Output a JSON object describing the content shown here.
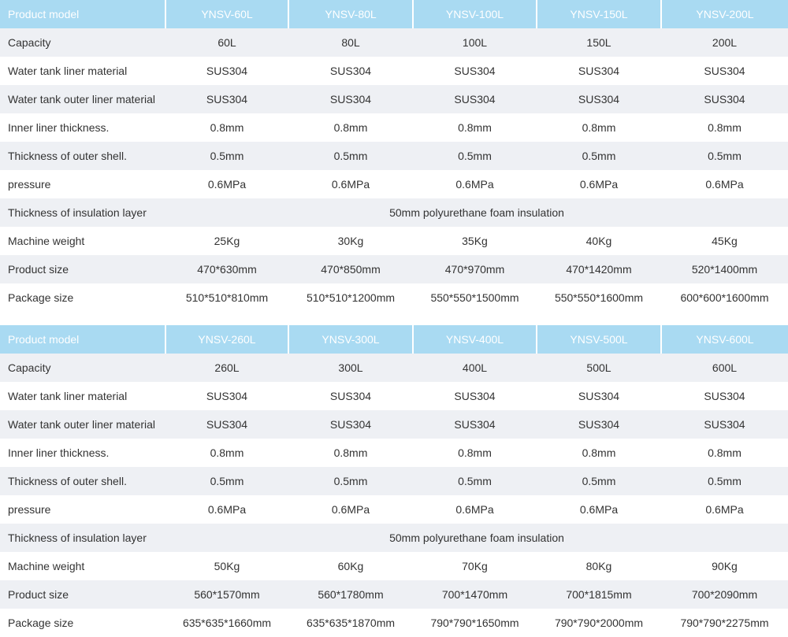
{
  "tables": [
    {
      "header": [
        "Product model",
        "YNSV-60L",
        "YNSV-80L",
        "YNSV-100L",
        "YNSV-150L",
        "YNSV-200L"
      ],
      "rows": [
        [
          "Capacity",
          "60L",
          "80L",
          "100L",
          "150L",
          "200L"
        ],
        [
          "Water tank liner material",
          "SUS304",
          "SUS304",
          "SUS304",
          "SUS304",
          "SUS304"
        ],
        [
          "Water tank outer liner material",
          "SUS304",
          "SUS304",
          "SUS304",
          "SUS304",
          "SUS304"
        ],
        [
          "Inner liner thickness.",
          "0.8mm",
          "0.8mm",
          "0.8mm",
          "0.8mm",
          "0.8mm"
        ],
        [
          "Thickness of outer shell.",
          "0.5mm",
          "0.5mm",
          "0.5mm",
          "0.5mm",
          "0.5mm"
        ],
        [
          "pressure",
          "0.6MPa",
          "0.6MPa",
          "0.6MPa",
          "0.6MPa",
          "0.6MPa"
        ],
        [
          "Thickness of insulation layer",
          "50mm polyurethane foam insulation"
        ],
        [
          "Machine weight",
          "25Kg",
          "30Kg",
          "35Kg",
          "40Kg",
          "45Kg"
        ],
        [
          "Product size",
          "470*630mm",
          "470*850mm",
          "470*970mm",
          "470*1420mm",
          "520*1400mm"
        ],
        [
          "Package size",
          "510*510*810mm",
          "510*510*1200mm",
          "550*550*1500mm",
          "550*550*1600mm",
          "600*600*1600mm"
        ]
      ]
    },
    {
      "header": [
        "Product model",
        "YNSV-260L",
        "YNSV-300L",
        "YNSV-400L",
        "YNSV-500L",
        "YNSV-600L"
      ],
      "rows": [
        [
          "Capacity",
          "260L",
          "300L",
          "400L",
          "500L",
          "600L"
        ],
        [
          "Water tank liner material",
          "SUS304",
          "SUS304",
          "SUS304",
          "SUS304",
          "SUS304"
        ],
        [
          "Water tank outer liner material",
          "SUS304",
          "SUS304",
          "SUS304",
          "SUS304",
          "SUS304"
        ],
        [
          "Inner liner thickness.",
          "0.8mm",
          "0.8mm",
          "0.8mm",
          "0.8mm",
          "0.8mm"
        ],
        [
          "Thickness of outer shell.",
          "0.5mm",
          "0.5mm",
          "0.5mm",
          "0.5mm",
          "0.5mm"
        ],
        [
          "pressure",
          "0.6MPa",
          "0.6MPa",
          "0.6MPa",
          "0.6MPa",
          "0.6MPa"
        ],
        [
          "Thickness of insulation layer",
          "50mm polyurethane foam insulation"
        ],
        [
          "Machine weight",
          "50Kg",
          "60Kg",
          "70Kg",
          "80Kg",
          "90Kg"
        ],
        [
          "Product size",
          "560*1570mm",
          "560*1780mm",
          "700*1470mm",
          "700*1815mm",
          "700*2090mm"
        ],
        [
          "Package size",
          "635*635*1660mm",
          "635*635*1870mm",
          "790*790*1650mm",
          "790*790*2000mm",
          "790*790*2275mm"
        ]
      ]
    }
  ]
}
